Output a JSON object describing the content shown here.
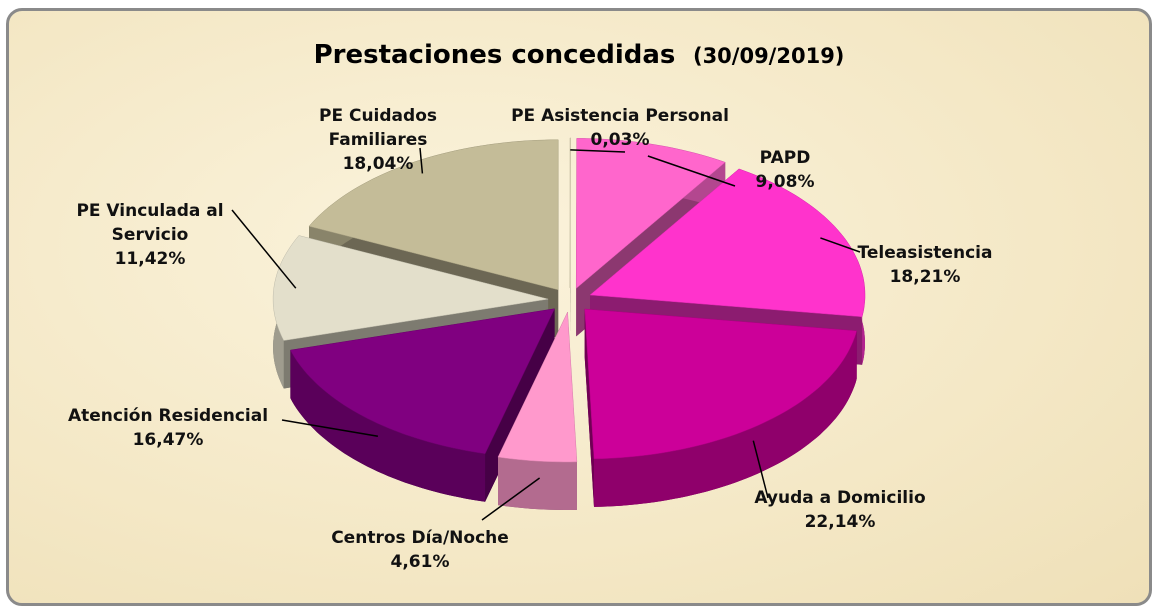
{
  "chart_data": {
    "type": "pie",
    "title": "Prestaciones concedidas",
    "subtitle": "(30/09/2019)",
    "categories": [
      "PE Asistencia Personal",
      "PAPD",
      "Teleasistencia",
      "Ayuda a Domicilio",
      "Centros Día/Noche",
      "Atención Residencial",
      "PE Vinculada al\nServicio",
      "PE Cuidados\nFamiliares"
    ],
    "values": [
      0.03,
      9.08,
      18.21,
      22.14,
      4.61,
      16.47,
      11.42,
      18.04
    ],
    "value_labels": [
      "0,03%",
      "9,08%",
      "18,21%",
      "22,14%",
      "4,61%",
      "16,47%",
      "11,42%",
      "18,04%"
    ],
    "colors": [
      "#d9cfae",
      "#ff66cc",
      "#ff33cc",
      "#cc0099",
      "#ff99cc",
      "#800080",
      "#e3dfcb",
      "#c4bc98"
    ]
  }
}
